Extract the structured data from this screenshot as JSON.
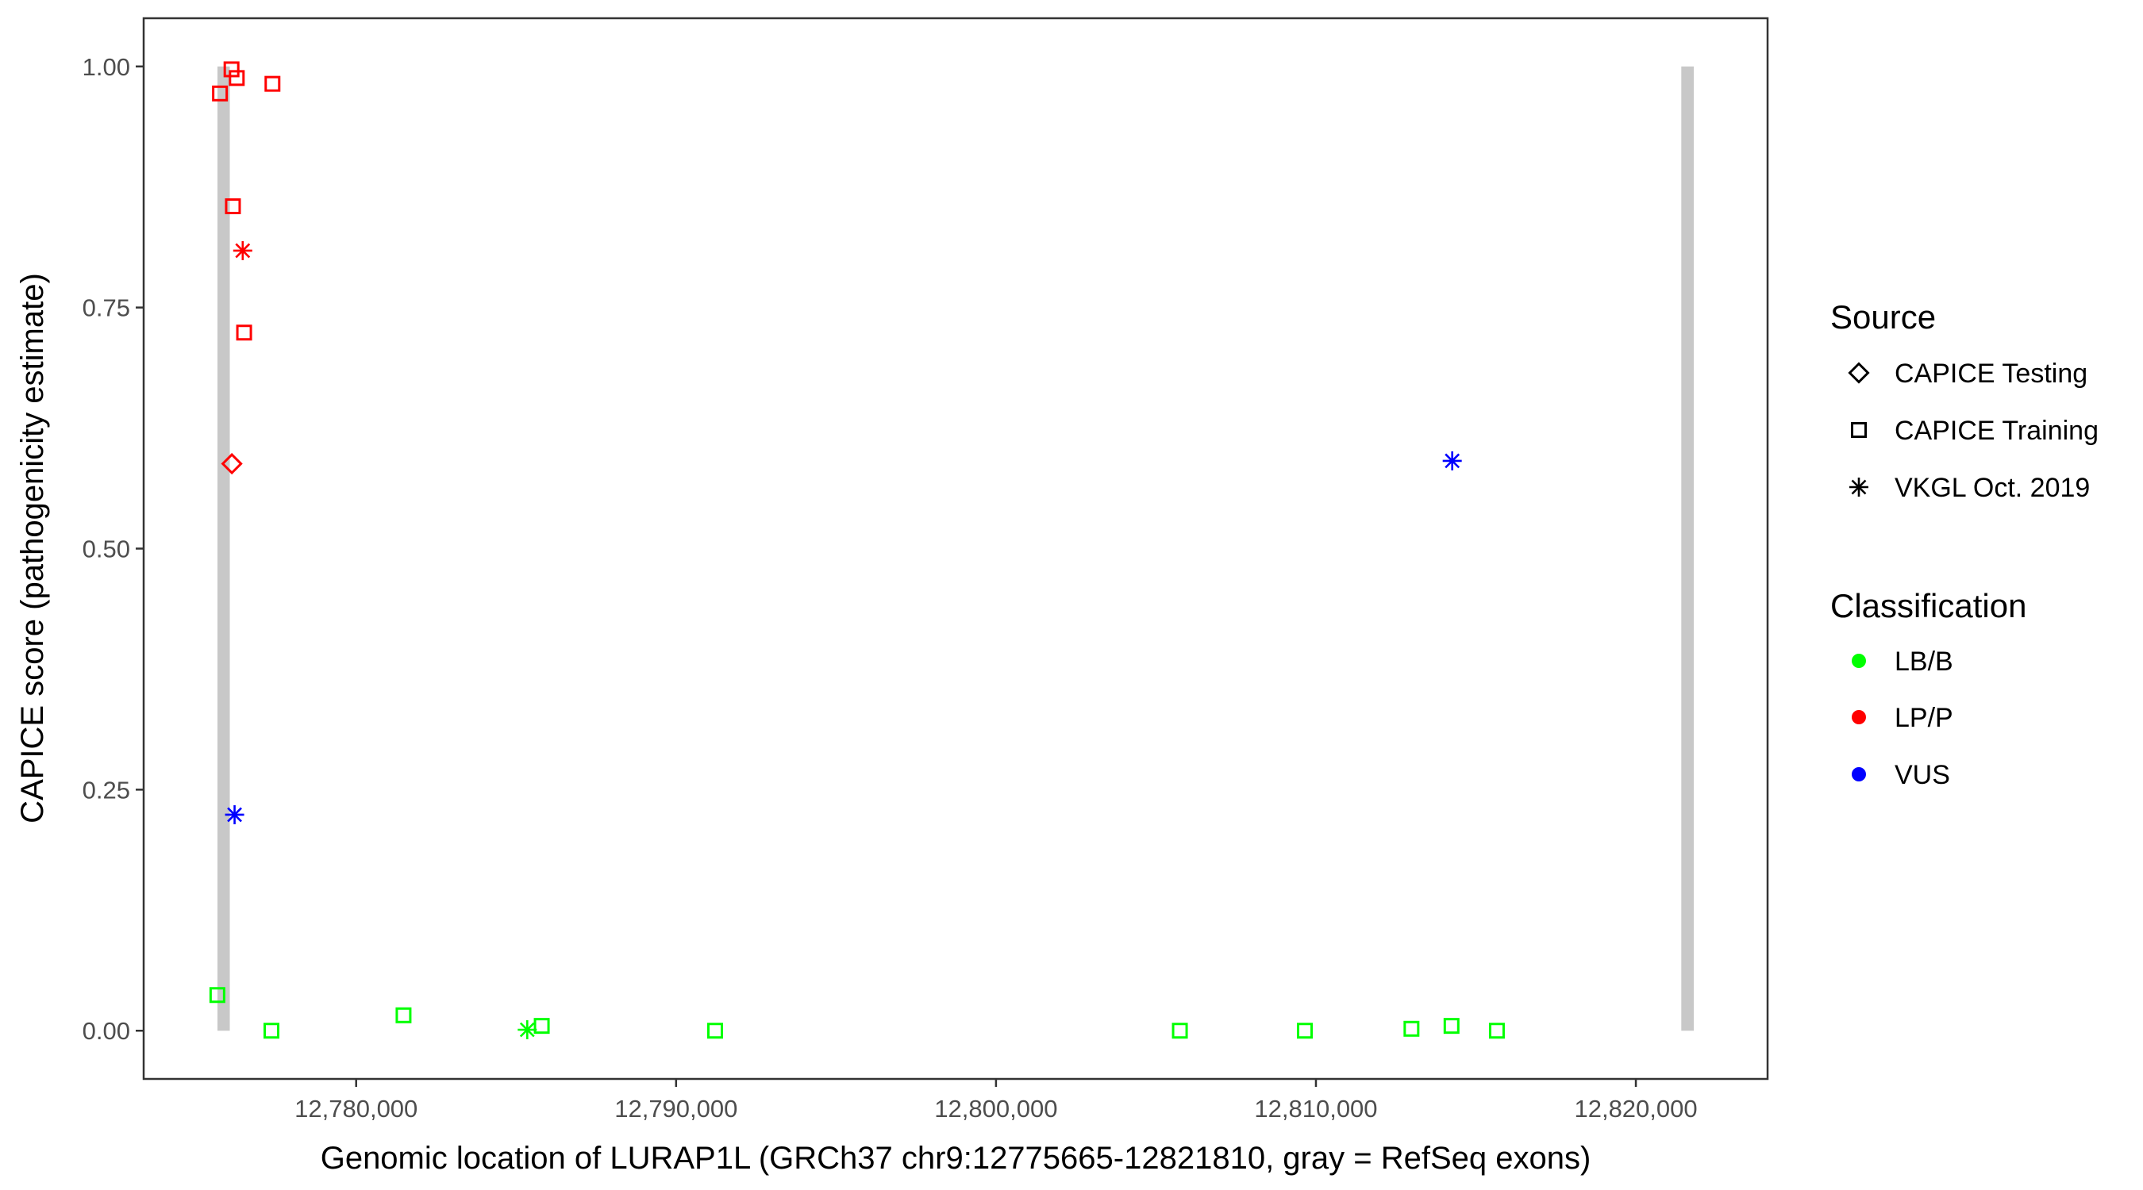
{
  "chart_data": {
    "type": "scatter",
    "title": "",
    "xlabel": "Genomic location of LURAP1L (GRCh37 chr9:12775665-12821810, gray = RefSeq exons)",
    "ylabel": "CAPICE score (pathogenicity estimate)",
    "xlim": [
      12773358,
      12824117
    ],
    "ylim": [
      -0.05,
      1.05
    ],
    "x_ticks": [
      12780000,
      12790000,
      12800000,
      12810000,
      12820000
    ],
    "x_tick_labels": [
      "12,780,000",
      "12,790,000",
      "12,800,000",
      "12,810,000",
      "12,820,000"
    ],
    "y_ticks": [
      0,
      0.25,
      0.5,
      0.75,
      1.0
    ],
    "y_tick_labels": [
      "0.00",
      "0.25",
      "0.50",
      "0.75",
      "1.00"
    ],
    "grid": false,
    "exons": [
      {
        "start": 12775665,
        "end": 12776050,
        "ymin": 0,
        "ymax": 1
      },
      {
        "start": 12821420,
        "end": 12821810,
        "ymin": 0,
        "ymax": 1
      }
    ],
    "exon_color": "#c8c8c8",
    "legend_placement": "right",
    "legend": {
      "source_title": "Source",
      "source_items": [
        {
          "label": "CAPICE Testing",
          "shape": "diamond"
        },
        {
          "label": "CAPICE Training",
          "shape": "square"
        },
        {
          "label": "VKGL Oct. 2019",
          "shape": "asterisk"
        }
      ],
      "class_title": "Classification",
      "class_items": [
        {
          "label": "LB/B",
          "color": "#00ff00"
        },
        {
          "label": "LP/P",
          "color": "#ff0000"
        },
        {
          "label": "VUS",
          "color": "#0000ff"
        }
      ]
    },
    "points": [
      {
        "x": 12776104,
        "y": 0.997,
        "source": "CAPICE Training",
        "class": "LP/P"
      },
      {
        "x": 12776268,
        "y": 0.988,
        "source": "CAPICE Training",
        "class": "LP/P"
      },
      {
        "x": 12775743,
        "y": 0.972,
        "source": "CAPICE Training",
        "class": "LP/P"
      },
      {
        "x": 12777384,
        "y": 0.982,
        "source": "CAPICE Training",
        "class": "LP/P"
      },
      {
        "x": 12776148,
        "y": 0.855,
        "source": "CAPICE Training",
        "class": "LP/P"
      },
      {
        "x": 12776454,
        "y": 0.809,
        "source": "VKGL Oct. 2019",
        "class": "LP/P"
      },
      {
        "x": 12776498,
        "y": 0.724,
        "source": "CAPICE Training",
        "class": "LP/P"
      },
      {
        "x": 12776115,
        "y": 0.588,
        "source": "CAPICE Testing",
        "class": "LP/P"
      },
      {
        "x": 12776200,
        "y": 0.224,
        "source": "VKGL Oct. 2019",
        "class": "VUS"
      },
      {
        "x": 12814260,
        "y": 0.591,
        "source": "VKGL Oct. 2019",
        "class": "VUS"
      },
      {
        "x": 12775662,
        "y": 0.037,
        "source": "CAPICE Training",
        "class": "LB/B"
      },
      {
        "x": 12777352,
        "y": 0.0,
        "source": "CAPICE Training",
        "class": "LB/B"
      },
      {
        "x": 12781481,
        "y": 0.016,
        "source": "CAPICE Training",
        "class": "LB/B"
      },
      {
        "x": 12785348,
        "y": 0.001,
        "source": "VKGL Oct. 2019",
        "class": "LB/B"
      },
      {
        "x": 12785801,
        "y": 0.005,
        "source": "CAPICE Training",
        "class": "LB/B"
      },
      {
        "x": 12791220,
        "y": 0.0,
        "source": "CAPICE Training",
        "class": "LB/B"
      },
      {
        "x": 12805747,
        "y": 0.0,
        "source": "CAPICE Training",
        "class": "LB/B"
      },
      {
        "x": 12809653,
        "y": 0.0,
        "source": "CAPICE Training",
        "class": "LB/B"
      },
      {
        "x": 12812986,
        "y": 0.002,
        "source": "CAPICE Training",
        "class": "LB/B"
      },
      {
        "x": 12814238,
        "y": 0.005,
        "source": "CAPICE Training",
        "class": "LB/B"
      },
      {
        "x": 12815656,
        "y": 0.0,
        "source": "CAPICE Training",
        "class": "LB/B"
      }
    ]
  }
}
